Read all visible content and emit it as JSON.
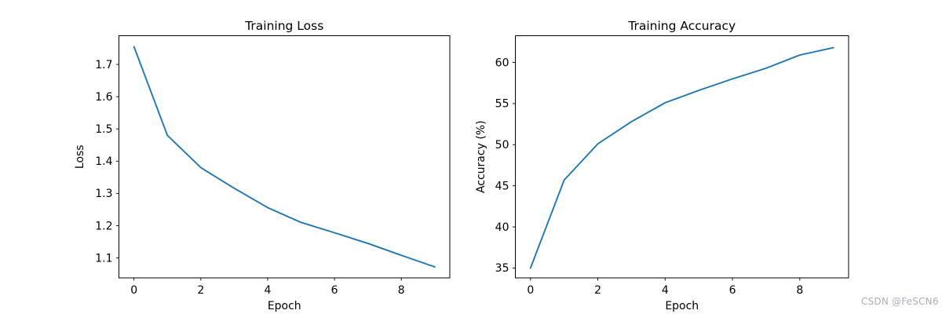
{
  "watermark": {
    "text": "CSDN @FeSCN6",
    "color": "#aab0b8"
  },
  "colors": {
    "background": "#ffffff",
    "spine": "#000000",
    "tick_label": "#000000",
    "title": "#000000",
    "series_line": "#1f77b4"
  },
  "chart_data": [
    {
      "type": "line",
      "title": "Training Loss",
      "xlabel": "Epoch",
      "ylabel": "Loss",
      "x": [
        0,
        1,
        2,
        3,
        4,
        5,
        6,
        7,
        8,
        9
      ],
      "y": [
        1.755,
        1.48,
        1.38,
        1.316,
        1.256,
        1.21,
        1.178,
        1.145,
        1.108,
        1.072
      ],
      "xlim": [
        -0.45,
        9.45
      ],
      "ylim": [
        1.038,
        1.789
      ],
      "xticks": [
        {
          "v": 0,
          "label": "0"
        },
        {
          "v": 2,
          "label": "2"
        },
        {
          "v": 4,
          "label": "4"
        },
        {
          "v": 6,
          "label": "6"
        },
        {
          "v": 8,
          "label": "8"
        }
      ],
      "yticks": [
        {
          "v": 1.1,
          "label": "1.1"
        },
        {
          "v": 1.2,
          "label": "1.2"
        },
        {
          "v": 1.3,
          "label": "1.3"
        },
        {
          "v": 1.4,
          "label": "1.4"
        },
        {
          "v": 1.5,
          "label": "1.5"
        },
        {
          "v": 1.6,
          "label": "1.6"
        },
        {
          "v": 1.7,
          "label": "1.7"
        }
      ],
      "grid": false,
      "legend": null,
      "line_color": "#1f77b4"
    },
    {
      "type": "line",
      "title": "Training Accuracy",
      "xlabel": "Epoch",
      "ylabel": "Accuracy (%)",
      "x": [
        0,
        1,
        2,
        3,
        4,
        5,
        6,
        7,
        8,
        9
      ],
      "y": [
        35.0,
        45.7,
        50.1,
        52.8,
        55.1,
        56.6,
        58.0,
        59.3,
        60.9,
        61.8
      ],
      "xlim": [
        -0.45,
        9.45
      ],
      "ylim": [
        33.8,
        63.25
      ],
      "xticks": [
        {
          "v": 0,
          "label": "0"
        },
        {
          "v": 2,
          "label": "2"
        },
        {
          "v": 4,
          "label": "4"
        },
        {
          "v": 6,
          "label": "6"
        },
        {
          "v": 8,
          "label": "8"
        }
      ],
      "yticks": [
        {
          "v": 35,
          "label": "35"
        },
        {
          "v": 40,
          "label": "40"
        },
        {
          "v": 45,
          "label": "45"
        },
        {
          "v": 50,
          "label": "50"
        },
        {
          "v": 55,
          "label": "55"
        },
        {
          "v": 60,
          "label": "60"
        }
      ],
      "grid": false,
      "legend": null,
      "line_color": "#1f77b4"
    }
  ]
}
